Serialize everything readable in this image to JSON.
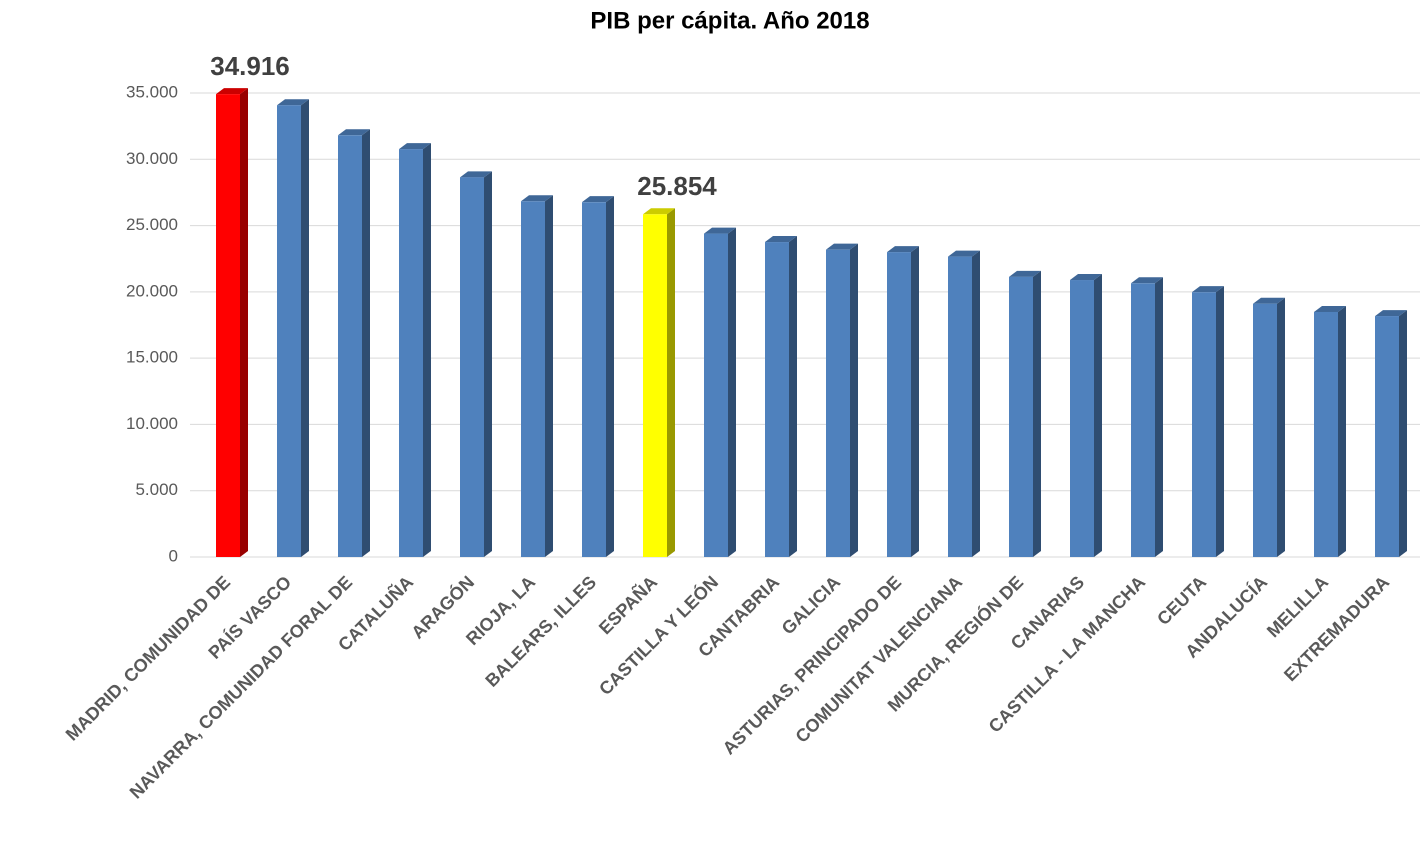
{
  "chart_data": {
    "type": "bar",
    "title": "PIB per cápita. Año 2018",
    "categories": [
      "MADRID, COMUNIDAD DE",
      "PAÍS VASCO",
      "NAVARRA, COMUNIDAD FORAL DE",
      "CATALUÑA",
      "ARAGÓN",
      "RIOJA, LA",
      "BALEARS, ILLES",
      "ESPAÑA",
      "CASTILLA Y LEÓN",
      "CANTABRIA",
      "GALICIA",
      "ASTURIAS, PRINCIPADO DE",
      "COMUNITAT VALENCIANA",
      "MURCIA, REGIÓN DE",
      "CANARIAS",
      "CASTILLA - LA MANCHA",
      "CEUTA",
      "ANDALUCÍA",
      "MELILLA",
      "EXTREMADURA"
    ],
    "values": [
      34916,
      34079,
      31809,
      30769,
      28640,
      26833,
      26764,
      25854,
      24397,
      23757,
      23183,
      22998,
      22659,
      21134,
      20892,
      20645,
      19976,
      19107,
      18482,
      18174
    ],
    "value_labels": [
      "34.916",
      null,
      null,
      null,
      null,
      null,
      null,
      "25.854",
      null,
      null,
      null,
      null,
      null,
      null,
      null,
      null,
      null,
      null,
      null,
      null
    ],
    "colors": [
      "#ff0000",
      "#4f81bd",
      "#4f81bd",
      "#4f81bd",
      "#4f81bd",
      "#4f81bd",
      "#4f81bd",
      "#ffff00",
      "#4f81bd",
      "#4f81bd",
      "#4f81bd",
      "#4f81bd",
      "#4f81bd",
      "#4f81bd",
      "#4f81bd",
      "#4f81bd",
      "#4f81bd",
      "#4f81bd",
      "#4f81bd",
      "#4f81bd"
    ],
    "ylim": [
      0,
      35000
    ],
    "yticks": [
      0,
      {
        "value": 5000,
        "label": "5.000"
      },
      {
        "value": 10000,
        "label": "10.000"
      },
      {
        "value": 15000,
        "label": "15.000"
      },
      {
        "value": 20000,
        "label": "20.000"
      },
      {
        "value": 25000,
        "label": "25.000"
      },
      {
        "value": 30000,
        "label": "30.000"
      },
      {
        "value": 35000,
        "label": "35.000"
      }
    ],
    "grid": true
  }
}
